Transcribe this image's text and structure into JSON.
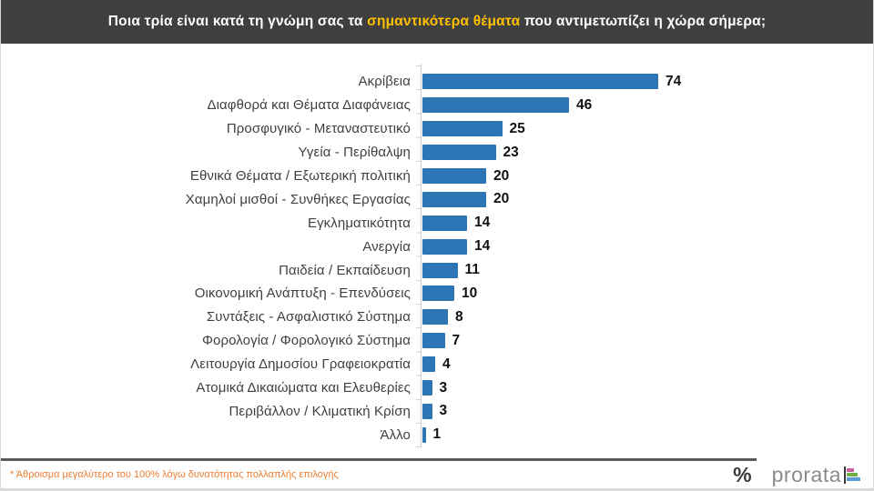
{
  "header": {
    "title_before": "Ποια τρία είναι κατά τη γνώμη σας τα ",
    "title_highlight": "σημαντικότερα θέματα",
    "title_after": " που αντιμετωπίζει η χώρα σήμερα;",
    "background_color": "#3F3F3F",
    "highlight_color": "#FFC000",
    "text_color": "#FFFFFF"
  },
  "chart_data": {
    "type": "bar",
    "orientation": "horizontal",
    "categories": [
      "Ακρίβεια",
      "Διαφθορά και Θέματα Διαφάνειας",
      "Προσφυγικό - Μεταναστευτικό",
      "Υγεία - Περίθαλψη",
      "Εθνικά Θέματα / Εξωτερική πολιτική",
      "Χαμηλοί μισθοί - Συνθήκες Εργασίας",
      "Εγκληματικότητα",
      "Ανεργία",
      "Παιδεία / Εκπαίδευση",
      "Οικονομική Ανάπτυξη - Επενδύσεις",
      "Συντάξεις - Ασφαλιστικό Σύστημα",
      "Φορολογία / Φορολογικό Σύστημα",
      "Λειτουργία Δημοσίου Γραφειοκρατία",
      "Ατομικά Δικαιώματα και Ελευθερίες",
      "Περιβάλλον / Κλιματική Κρίση",
      "Άλλο"
    ],
    "values": [
      74,
      46,
      25,
      23,
      20,
      20,
      14,
      14,
      11,
      10,
      8,
      7,
      4,
      3,
      3,
      1
    ],
    "value_labels_shown": true,
    "bar_color": "#2E75B6",
    "xlim": [
      0,
      80
    ],
    "grid": false,
    "legend": false,
    "title": "",
    "xlabel": "",
    "ylabel": ""
  },
  "footer": {
    "note": "* Άθροισμα μεγαλύτερο του 100% λόγω δυνατότητας πολλαπλής επιλογής",
    "note_color": "#ED7D31",
    "logo_percent": "%",
    "logo_text": "prorata",
    "logo_bar_colors": [
      "#CE5FA4",
      "#6FAD47",
      "#5B9BD5"
    ],
    "divider_color": "#595959"
  }
}
